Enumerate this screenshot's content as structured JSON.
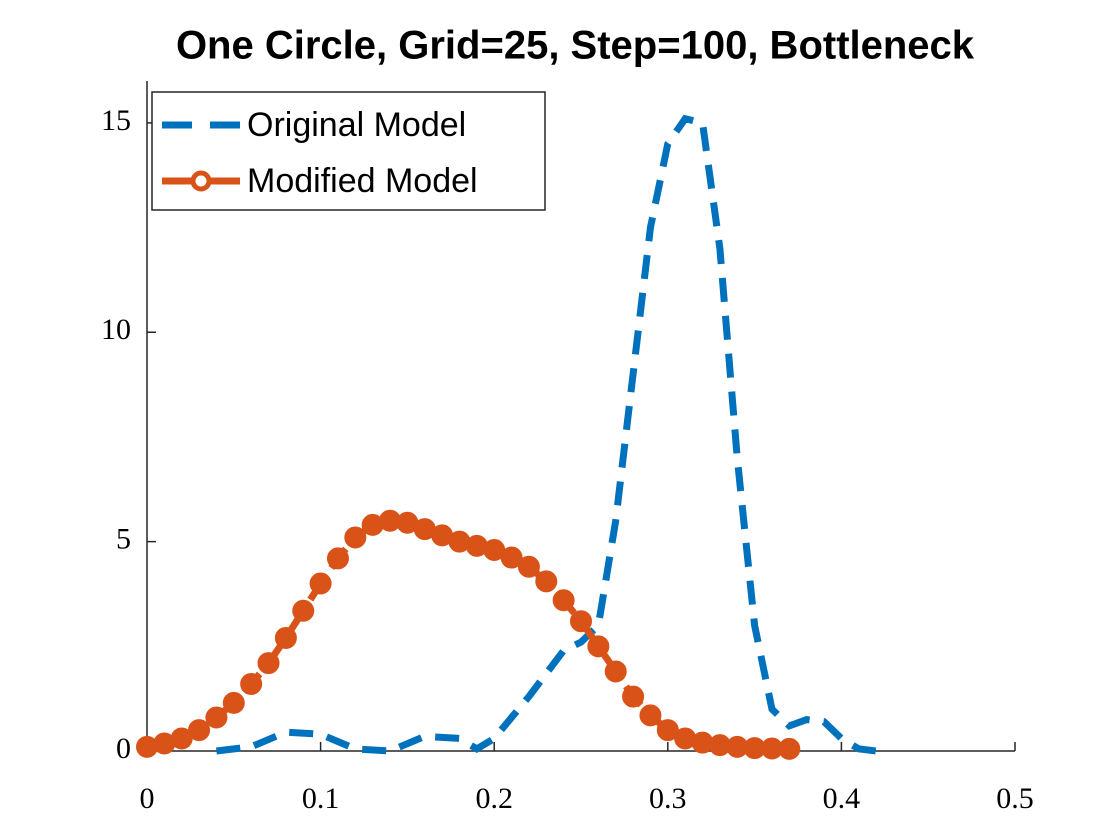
{
  "chart_data": {
    "type": "line",
    "title": "One Circle, Grid=25, Step=100, Bottleneck",
    "xlim": [
      0,
      0.5
    ],
    "ylim": [
      0,
      16
    ],
    "xticks": [
      0,
      0.1,
      0.2,
      0.3,
      0.4,
      0.5
    ],
    "yticks": [
      0,
      5,
      10,
      15
    ],
    "grid": false,
    "legend": "upper left",
    "series": [
      {
        "name": "Original Model",
        "color": "#0072bd",
        "style": "dashed",
        "x": [
          0.04,
          0.06,
          0.08,
          0.1,
          0.12,
          0.14,
          0.16,
          0.18,
          0.19,
          0.2,
          0.22,
          0.24,
          0.25,
          0.26,
          0.27,
          0.28,
          0.29,
          0.3,
          0.31,
          0.32,
          0.33,
          0.34,
          0.35,
          0.36,
          0.37,
          0.38,
          0.39,
          0.4,
          0.41,
          0.42
        ],
        "values": [
          0,
          0.1,
          0.45,
          0.4,
          0.05,
          0,
          0.35,
          0.3,
          0.05,
          0.3,
          1.3,
          2.4,
          2.6,
          3.0,
          5.5,
          9.0,
          12.5,
          14.5,
          15.1,
          15.0,
          12.0,
          7.0,
          3.0,
          1.0,
          0.6,
          0.75,
          0.7,
          0.3,
          0.05,
          0
        ]
      },
      {
        "name": "Modified Model",
        "color": "#d95319",
        "style": "dashed-circle",
        "x": [
          0,
          0.01,
          0.02,
          0.03,
          0.04,
          0.05,
          0.06,
          0.07,
          0.08,
          0.09,
          0.1,
          0.11,
          0.12,
          0.13,
          0.14,
          0.15,
          0.16,
          0.17,
          0.18,
          0.19,
          0.2,
          0.21,
          0.22,
          0.23,
          0.24,
          0.25,
          0.26,
          0.27,
          0.28,
          0.29,
          0.3,
          0.31,
          0.32,
          0.33,
          0.34,
          0.35,
          0.36,
          0.37
        ],
        "values": [
          0.1,
          0.18,
          0.3,
          0.5,
          0.8,
          1.15,
          1.6,
          2.1,
          2.7,
          3.35,
          4.0,
          4.6,
          5.1,
          5.4,
          5.5,
          5.45,
          5.3,
          5.15,
          5.0,
          4.9,
          4.8,
          4.62,
          4.4,
          4.05,
          3.6,
          3.1,
          2.5,
          1.9,
          1.3,
          0.85,
          0.5,
          0.3,
          0.2,
          0.14,
          0.1,
          0.07,
          0.06,
          0.05
        ]
      }
    ]
  }
}
